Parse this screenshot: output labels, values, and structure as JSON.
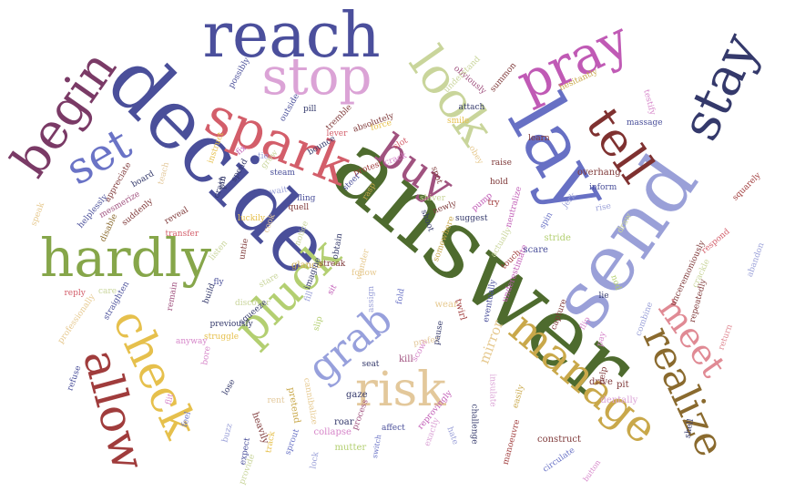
{
  "words": [
    {
      "text": "answer",
      "color": "#4e6b2e"
    },
    {
      "text": "decide",
      "color": "#4a4f9a"
    },
    {
      "text": "send",
      "color": "#9aa0d8"
    },
    {
      "text": "lay",
      "color": "#6770c4"
    },
    {
      "text": "reach",
      "color": "#4b4f9c"
    },
    {
      "text": "stop",
      "color": "#dba3d6"
    },
    {
      "text": "spark",
      "color": "#d35e6a"
    },
    {
      "text": "look",
      "color": "#c9d59b"
    },
    {
      "text": "pray",
      "color": "#c05ab5"
    },
    {
      "text": "stay",
      "color": "#34396b"
    },
    {
      "text": "tell",
      "color": "#7f3130"
    },
    {
      "text": "begin",
      "color": "#7a3a66"
    },
    {
      "text": "set",
      "color": "#6a73c6"
    },
    {
      "text": "hardly",
      "color": "#86a64a"
    },
    {
      "text": "buy",
      "color": "#a0527f"
    },
    {
      "text": "check",
      "color": "#e6c04c"
    },
    {
      "text": "allow",
      "color": "#a03c3c"
    },
    {
      "text": "pluck",
      "color": "#b3cf71"
    },
    {
      "text": "grab",
      "color": "#97a0dc"
    },
    {
      "text": "risk",
      "color": "#e3c89b"
    },
    {
      "text": "manage",
      "color": "#c9a84a"
    },
    {
      "text": "realize",
      "color": "#8a6a2e"
    },
    {
      "text": "meet",
      "color": "#e08a94"
    },
    {
      "text": "mirror",
      "color": "#e6c98f"
    },
    {
      "text": "construct",
      "color": "#7f3939"
    },
    {
      "text": "circulate",
      "color": "#6a73c6"
    },
    {
      "text": "button",
      "color": "#d685c9"
    },
    {
      "text": "manoeuvre",
      "color": "#a03c3c"
    },
    {
      "text": "challenge",
      "color": "#34396b"
    },
    {
      "text": "easily",
      "color": "#c9a84a"
    },
    {
      "text": "insulate",
      "color": "#dba3d6"
    },
    {
      "text": "hate",
      "color": "#9aa0d8"
    },
    {
      "text": "switch",
      "color": "#6a73c6"
    },
    {
      "text": "affect",
      "color": "#4a4f9a"
    },
    {
      "text": "process",
      "color": "#a0527f"
    },
    {
      "text": "reprovingly",
      "color": "#c05ab5"
    },
    {
      "text": "exactly",
      "color": "#dba3d6"
    },
    {
      "text": "mutter",
      "color": "#b3cf71"
    },
    {
      "text": "collapse",
      "color": "#d685c9"
    },
    {
      "text": "roar",
      "color": "#34396b"
    },
    {
      "text": "gaze",
      "color": "#34396b"
    },
    {
      "text": "sprout",
      "color": "#6a73c6"
    },
    {
      "text": "lock",
      "color": "#9aa0d8"
    },
    {
      "text": "pretend",
      "color": "#c9a84a"
    },
    {
      "text": "track",
      "color": "#e6c04c"
    },
    {
      "text": "heavily",
      "color": "#7f3939"
    },
    {
      "text": "expect",
      "color": "#4a4f9a"
    },
    {
      "text": "provide",
      "color": "#c9d59b"
    },
    {
      "text": "buzz",
      "color": "#9aa0d8"
    },
    {
      "text": "rent",
      "color": "#e3c89b"
    },
    {
      "text": "cannibalize",
      "color": "#e6c98f"
    },
    {
      "text": "seat",
      "color": "#34396b"
    },
    {
      "text": "kill",
      "color": "#a0527f"
    },
    {
      "text": "scowl",
      "color": "#d685c9"
    },
    {
      "text": "prefer",
      "color": "#e3c89b"
    },
    {
      "text": "pause",
      "color": "#34396b"
    },
    {
      "text": "wear",
      "color": "#e6c98f"
    },
    {
      "text": "twirl",
      "color": "#a03c3c"
    },
    {
      "text": "eventually",
      "color": "#4a4f9a"
    },
    {
      "text": "underestimate",
      "color": "#c05ab5"
    },
    {
      "text": "scare",
      "color": "#4a4f9a"
    },
    {
      "text": "stride",
      "color": "#b3cf71"
    },
    {
      "text": "capture",
      "color": "#7f3939"
    },
    {
      "text": "flip",
      "color": "#d685c9"
    },
    {
      "text": "pay",
      "color": "#d685c9"
    },
    {
      "text": "lie",
      "color": "#34396b"
    },
    {
      "text": "help",
      "color": "#7f3939"
    },
    {
      "text": "drive",
      "color": "#7f3939"
    },
    {
      "text": "pit",
      "color": "#7f3939"
    },
    {
      "text": "dentally",
      "color": "#dba3d6"
    },
    {
      "text": "shell",
      "color": "#34396b"
    },
    {
      "text": "combine",
      "color": "#9aa0d8"
    },
    {
      "text": "return",
      "color": "#e08a94"
    },
    {
      "text": "repeatedly",
      "color": "#7f3939"
    },
    {
      "text": "unceremoniously",
      "color": "#7f3939"
    },
    {
      "text": "crackle",
      "color": "#c9d59b"
    },
    {
      "text": "respond",
      "color": "#d35e6a"
    },
    {
      "text": "abandon",
      "color": "#9aa0d8"
    },
    {
      "text": "squarely",
      "color": "#a03c3c"
    },
    {
      "text": "draw",
      "color": "#c9d59b"
    },
    {
      "text": "rise",
      "color": "#9aa0d8"
    },
    {
      "text": "inform",
      "color": "#4a4f9a"
    },
    {
      "text": "overhang",
      "color": "#7f3939"
    },
    {
      "text": "spin",
      "color": "#6a73c6"
    },
    {
      "text": "jerk",
      "color": "#9aa0d8"
    },
    {
      "text": "raise",
      "color": "#7f3939"
    },
    {
      "text": "obey",
      "color": "#e6c98f"
    },
    {
      "text": "learn",
      "color": "#7f3939"
    },
    {
      "text": "massage",
      "color": "#4a4f9a"
    },
    {
      "text": "testify",
      "color": "#d685c9"
    },
    {
      "text": "hesitantly",
      "color": "#c9a84a"
    },
    {
      "text": "summon",
      "color": "#7f3939"
    },
    {
      "text": "obviously",
      "color": "#a0527f"
    },
    {
      "text": "understand",
      "color": "#c9d59b"
    },
    {
      "text": "attach",
      "color": "#34396b"
    },
    {
      "text": "smile",
      "color": "#e6c04c"
    },
    {
      "text": "spot",
      "color": "#7f3939"
    },
    {
      "text": "hold",
      "color": "#7f3939"
    },
    {
      "text": "try",
      "color": "#a03c3c"
    },
    {
      "text": "pump",
      "color": "#c05ab5"
    },
    {
      "text": "suggest",
      "color": "#34396b"
    },
    {
      "text": "newly",
      "color": "#7f3939"
    },
    {
      "text": "shiver",
      "color": "#c9d59b"
    },
    {
      "text": "shoot",
      "color": "#34396b"
    },
    {
      "text": "somewhere",
      "color": "#c9a84a"
    },
    {
      "text": "neutralize",
      "color": "#c05ab5"
    },
    {
      "text": "actually",
      "color": "#c9d59b"
    },
    {
      "text": "touch",
      "color": "#a03c3c"
    },
    {
      "text": "nod",
      "color": "#b3cf71"
    },
    {
      "text": "protest",
      "color": "#a03c3c"
    },
    {
      "text": "force",
      "color": "#e6c04c"
    },
    {
      "text": "slot",
      "color": "#d35e6a"
    },
    {
      "text": "crack",
      "color": "#d685c9"
    },
    {
      "text": "lever",
      "color": "#d35e6a"
    },
    {
      "text": "absolutely",
      "color": "#7f3939"
    },
    {
      "text": "steer",
      "color": "#4a4f9a"
    },
    {
      "text": "rasp",
      "color": "#c9a84a"
    },
    {
      "text": "tremble",
      "color": "#7f3939"
    },
    {
      "text": "bounce",
      "color": "#34396b"
    },
    {
      "text": "pill",
      "color": "#34396b"
    },
    {
      "text": "outside",
      "color": "#4a4f9a"
    },
    {
      "text": "possibly",
      "color": "#4a4f9a"
    },
    {
      "text": "grow",
      "color": "#c9d59b"
    },
    {
      "text": "tie",
      "color": "#9aa0d8"
    },
    {
      "text": "pin",
      "color": "#34396b"
    },
    {
      "text": "fix",
      "color": "#c05ab5"
    },
    {
      "text": "instruct",
      "color": "#e6c04c"
    },
    {
      "text": "spend",
      "color": "#34396b"
    },
    {
      "text": "steam",
      "color": "#4a4f9a"
    },
    {
      "text": "wait",
      "color": "#9aa0d8"
    },
    {
      "text": "crash",
      "color": "#34396b"
    },
    {
      "text": "fling",
      "color": "#4a4f9a"
    },
    {
      "text": "quell",
      "color": "#7f3939"
    },
    {
      "text": "luckily",
      "color": "#e6c04c"
    },
    {
      "text": "cook",
      "color": "#e3c89b"
    },
    {
      "text": "notice",
      "color": "#c9d59b"
    },
    {
      "text": "obtain",
      "color": "#34396b"
    },
    {
      "text": "streak",
      "color": "#7f3939"
    },
    {
      "text": "glance",
      "color": "#c9a84a"
    },
    {
      "text": "imagine",
      "color": "#34396b"
    },
    {
      "text": "follow",
      "color": "#e6c98f"
    },
    {
      "text": "wonder",
      "color": "#e6c98f"
    },
    {
      "text": "sit",
      "color": "#c05ab5"
    },
    {
      "text": "slip",
      "color": "#b3cf71"
    },
    {
      "text": "fill",
      "color": "#9aa0d8"
    },
    {
      "text": "fold",
      "color": "#6a73c6"
    },
    {
      "text": "assign",
      "color": "#9aa0d8"
    },
    {
      "text": "stare",
      "color": "#c9d59b"
    },
    {
      "text": "untie",
      "color": "#7f3939"
    },
    {
      "text": "discover",
      "color": "#c9d59b"
    },
    {
      "text": "squeeze",
      "color": "#34396b"
    },
    {
      "text": "previously",
      "color": "#34396b"
    },
    {
      "text": "struggle",
      "color": "#e6c04c"
    },
    {
      "text": "build",
      "color": "#34396b"
    },
    {
      "text": "fly",
      "color": "#4a4f9a"
    },
    {
      "text": "listen",
      "color": "#c9d59b"
    },
    {
      "text": "remain",
      "color": "#a0527f"
    },
    {
      "text": "transfer",
      "color": "#d35e6a"
    },
    {
      "text": "reveal",
      "color": "#7f3939"
    },
    {
      "text": "suddenly",
      "color": "#7f3939"
    },
    {
      "text": "mesmerize",
      "color": "#a0527f"
    },
    {
      "text": "appreciate",
      "color": "#7f3939"
    },
    {
      "text": "helplessly",
      "color": "#4a4f9a"
    },
    {
      "text": "speak",
      "color": "#e6c98f"
    },
    {
      "text": "board",
      "color": "#34396b"
    },
    {
      "text": "teach",
      "color": "#e3c89b"
    },
    {
      "text": "disable",
      "color": "#8a6a2e"
    },
    {
      "text": "reply",
      "color": "#d35e6a"
    },
    {
      "text": "care",
      "color": "#c9d59b"
    },
    {
      "text": "straighten",
      "color": "#4a4f9a"
    },
    {
      "text": "professionally",
      "color": "#e6c98f"
    },
    {
      "text": "refuse",
      "color": "#4a4f9a"
    },
    {
      "text": "anyway",
      "color": "#d685c9"
    },
    {
      "text": "bore",
      "color": "#d685c9"
    },
    {
      "text": "flit",
      "color": "#d685c9"
    },
    {
      "text": "feel",
      "color": "#6a73c6"
    },
    {
      "text": "lose",
      "color": "#34396b"
    }
  ]
}
